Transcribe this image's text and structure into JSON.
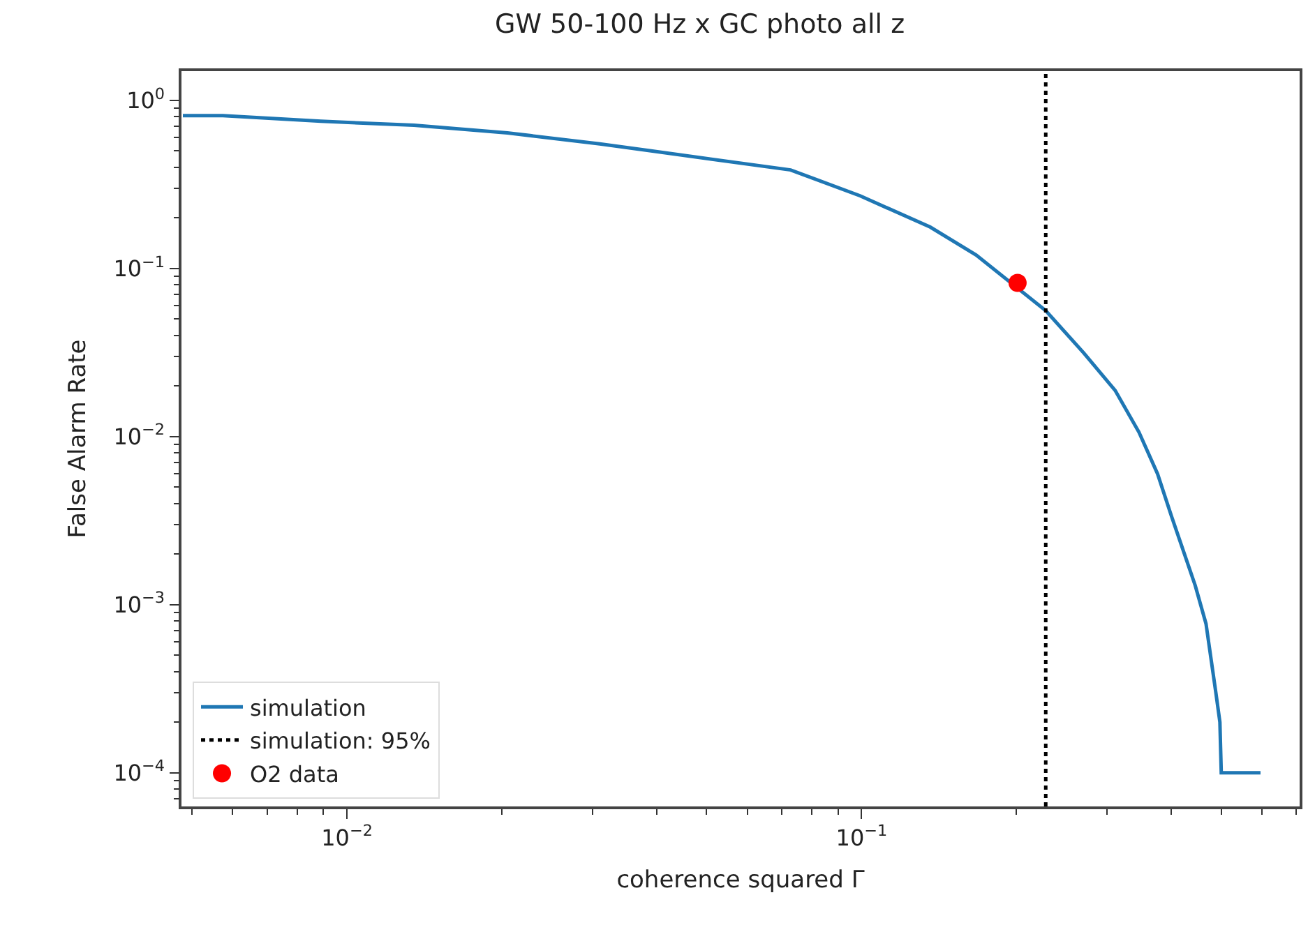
{
  "chart_data": {
    "type": "line",
    "title": "GW 50-100 Hz x GC photo all z",
    "xlabel": "coherence squared Γ",
    "ylabel": "False Alarm Rate",
    "log": "xy",
    "series": [
      {
        "name": "simulation",
        "color": "#1f77b4",
        "x": [
          0.0048,
          0.00574,
          0.0089,
          0.0135,
          0.0205,
          0.031,
          0.039,
          0.0728,
          0.0994,
          0.136,
          0.167,
          0.228,
          0.27,
          0.311,
          0.346,
          0.376,
          0.4,
          0.445,
          0.467,
          0.488,
          0.497,
          0.5,
          0.596
        ],
        "values": [
          0.81,
          0.81,
          0.75,
          0.71,
          0.64,
          0.55,
          0.5,
          0.385,
          0.27,
          0.176,
          0.12,
          0.056,
          0.0315,
          0.0188,
          0.0106,
          0.006,
          0.00337,
          0.0013,
          0.00077,
          0.0003,
          0.0002,
          0.0001,
          0.0001
        ]
      },
      {
        "name": "simulation: 95%",
        "color": "#000000",
        "line_style": "dotted",
        "x": [
          0.228,
          0.228
        ],
        "values": [
          6.3e-05,
          1.49
        ]
      },
      {
        "name": "O2 data",
        "color": "#ff0000",
        "type": "scatter",
        "marker": "circle",
        "x": [
          0.201
        ],
        "values": [
          0.082
        ]
      }
    ],
    "xlim": [
      0.00477,
      0.71
    ],
    "ylim": [
      6.3e-05,
      1.49
    ],
    "xticks": [
      {
        "value": 0.005,
        "label": null
      },
      {
        "value": 0.006,
        "label": null
      },
      {
        "value": 0.007,
        "label": null
      },
      {
        "value": 0.008,
        "label": null
      },
      {
        "value": 0.009,
        "label": null
      },
      {
        "value": 0.01,
        "label": "10$^{−2}$"
      },
      {
        "value": 0.02,
        "label": null
      },
      {
        "value": 0.03,
        "label": null
      },
      {
        "value": 0.04,
        "label": null
      },
      {
        "value": 0.05,
        "label": null
      },
      {
        "value": 0.06,
        "label": null
      },
      {
        "value": 0.07,
        "label": null
      },
      {
        "value": 0.08,
        "label": null
      },
      {
        "value": 0.09,
        "label": null
      },
      {
        "value": 0.1,
        "label": "10$^{−1}$"
      },
      {
        "value": 0.2,
        "label": null
      },
      {
        "value": 0.3,
        "label": null
      },
      {
        "value": 0.4,
        "label": null
      },
      {
        "value": 0.5,
        "label": null
      },
      {
        "value": 0.6,
        "label": null
      },
      {
        "value": 0.7,
        "label": null
      }
    ],
    "yticks": [
      {
        "value": 7e-05,
        "label": null
      },
      {
        "value": 8e-05,
        "label": null
      },
      {
        "value": 9e-05,
        "label": null
      },
      {
        "value": 0.0001,
        "label": "10$^{−4}$"
      },
      {
        "value": 0.0002,
        "label": null
      },
      {
        "value": 0.0003,
        "label": null
      },
      {
        "value": 0.0004,
        "label": null
      },
      {
        "value": 0.0005,
        "label": null
      },
      {
        "value": 0.0006,
        "label": null
      },
      {
        "value": 0.0007,
        "label": null
      },
      {
        "value": 0.0008,
        "label": null
      },
      {
        "value": 0.0009,
        "label": null
      },
      {
        "value": 0.001,
        "label": "10$^{−3}$"
      },
      {
        "value": 0.002,
        "label": null
      },
      {
        "value": 0.003,
        "label": null
      },
      {
        "value": 0.004,
        "label": null
      },
      {
        "value": 0.005,
        "label": null
      },
      {
        "value": 0.006,
        "label": null
      },
      {
        "value": 0.007,
        "label": null
      },
      {
        "value": 0.008,
        "label": null
      },
      {
        "value": 0.009,
        "label": null
      },
      {
        "value": 0.01,
        "label": "10$^{−2}$"
      },
      {
        "value": 0.02,
        "label": null
      },
      {
        "value": 0.03,
        "label": null
      },
      {
        "value": 0.04,
        "label": null
      },
      {
        "value": 0.05,
        "label": null
      },
      {
        "value": 0.06,
        "label": null
      },
      {
        "value": 0.07,
        "label": null
      },
      {
        "value": 0.08,
        "label": null
      },
      {
        "value": 0.09,
        "label": null
      },
      {
        "value": 0.1,
        "label": "10$^{−1}$"
      },
      {
        "value": 0.2,
        "label": null
      },
      {
        "value": 0.3,
        "label": null
      },
      {
        "value": 0.4,
        "label": null
      },
      {
        "value": 0.5,
        "label": null
      },
      {
        "value": 0.6,
        "label": null
      },
      {
        "value": 0.7,
        "label": null
      },
      {
        "value": 0.8,
        "label": null
      },
      {
        "value": 0.9,
        "label": null
      },
      {
        "value": 1,
        "label": "10$^{0}$"
      }
    ],
    "legend": "bottom left"
  }
}
